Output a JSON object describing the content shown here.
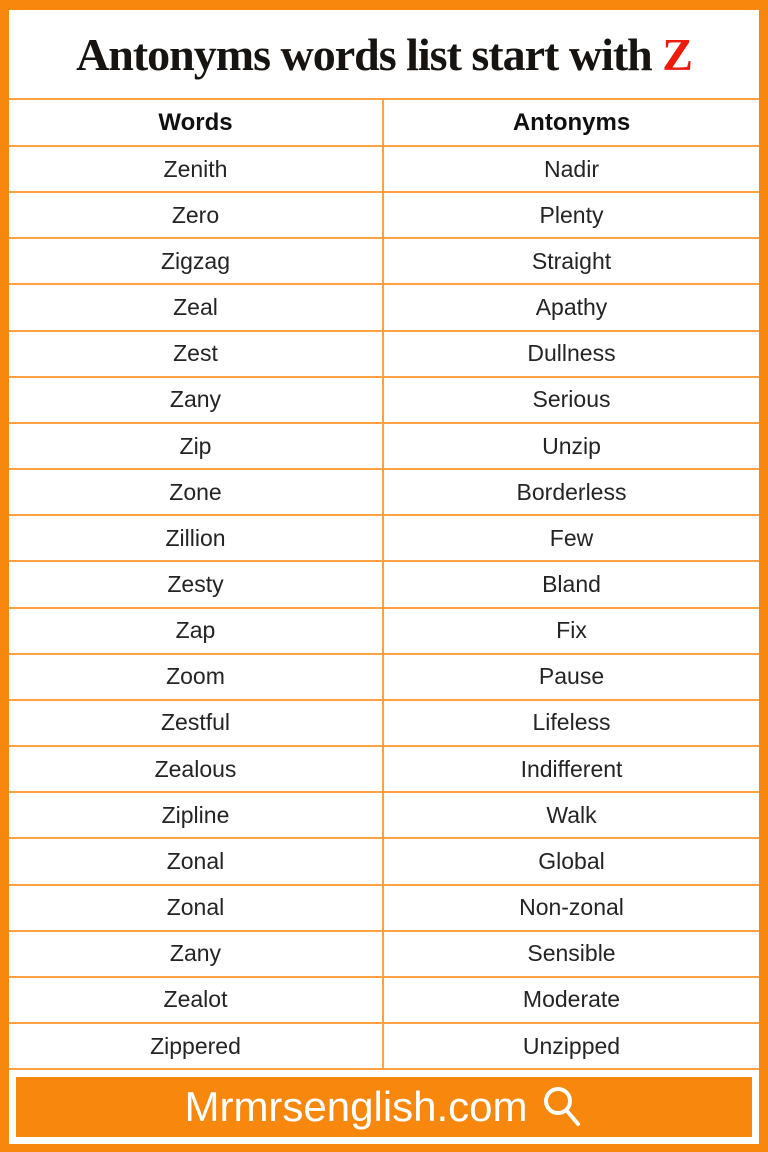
{
  "title": {
    "text": "Antonyms words list start with",
    "highlight": "Z"
  },
  "table": {
    "headers": [
      "Words",
      "Antonyms"
    ],
    "rows": [
      {
        "word": "Zenith",
        "antonym": "Nadir"
      },
      {
        "word": "Zero",
        "antonym": "Plenty"
      },
      {
        "word": "Zigzag",
        "antonym": "Straight"
      },
      {
        "word": "Zeal",
        "antonym": "Apathy"
      },
      {
        "word": "Zest",
        "antonym": "Dullness"
      },
      {
        "word": "Zany",
        "antonym": "Serious"
      },
      {
        "word": "Zip",
        "antonym": "Unzip"
      },
      {
        "word": "Zone",
        "antonym": "Borderless"
      },
      {
        "word": "Zillion",
        "antonym": "Few"
      },
      {
        "word": "Zesty",
        "antonym": "Bland"
      },
      {
        "word": "Zap",
        "antonym": "Fix"
      },
      {
        "word": "Zoom",
        "antonym": "Pause"
      },
      {
        "word": "Zestful",
        "antonym": "Lifeless"
      },
      {
        "word": "Zealous",
        "antonym": "Indifferent"
      },
      {
        "word": "Zipline",
        "antonym": "Walk"
      },
      {
        "word": "Zonal",
        "antonym": "Global"
      },
      {
        "word": "Zonal",
        "antonym": "Non-zonal"
      },
      {
        "word": "Zany",
        "antonym": "Sensible"
      },
      {
        "word": "Zealot",
        "antonym": "Moderate"
      },
      {
        "word": "Zippered",
        "antonym": "Unzipped"
      }
    ]
  },
  "footer": {
    "site": "Mrmrsenglish.com",
    "icon": "search-icon"
  },
  "colors": {
    "frame_orange": "#F8870E",
    "table_line_orange": "#FFA143",
    "title_black": "#171310",
    "highlight_red": "#EE1B0D",
    "cell_text": "#242424",
    "footer_text": "#FFFFFF"
  }
}
